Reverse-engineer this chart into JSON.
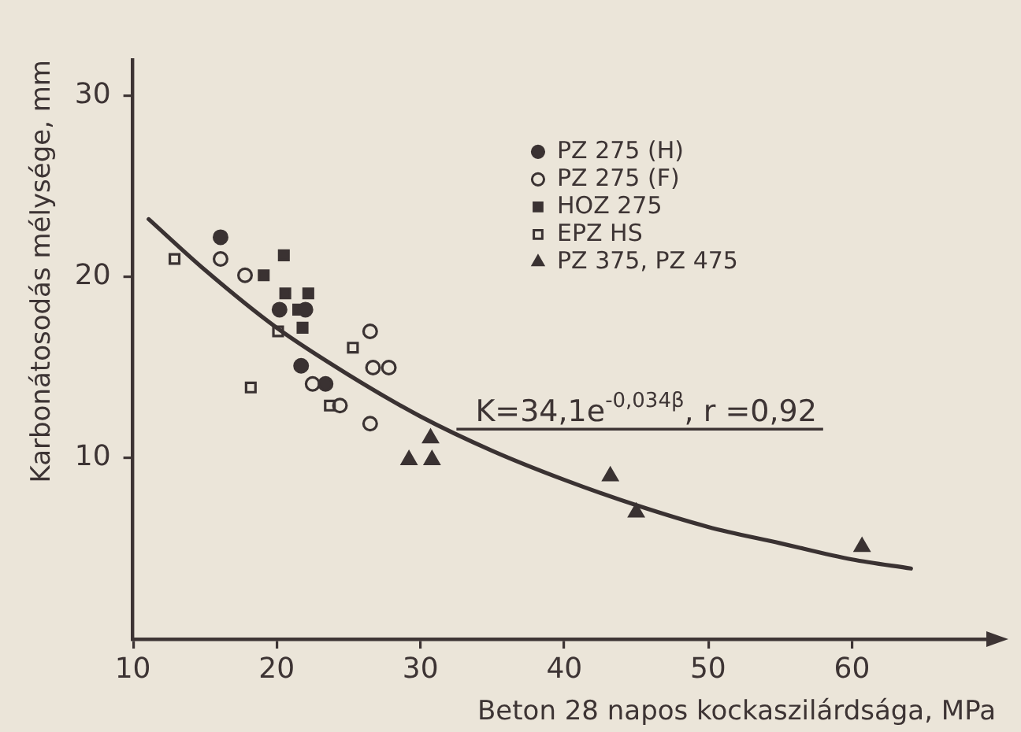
{
  "chart_data": {
    "type": "scatter",
    "xlabel": "Beton 28 napos kockaszilárdsága, MPa",
    "ylabel": "Karbonátosodás mélysége, mm",
    "xlim": [
      10,
      70
    ],
    "ylim": [
      0,
      32
    ],
    "xticks": [
      10,
      20,
      30,
      40,
      50,
      60
    ],
    "yticks": [
      10,
      20,
      30
    ],
    "legend": "top",
    "series": [
      {
        "name": "PZ 275 (H)",
        "color": "#3a3232",
        "marker": "circle",
        "x": [
          16.1,
          20.2,
          21.7,
          23.4,
          22.0
        ],
        "values": [
          22.2,
          18.2,
          15.1,
          14.1,
          18.2
        ]
      },
      {
        "name": "PZ 275 (F)",
        "color": "#3a3232",
        "marker": "circle-open",
        "x": [
          16.1,
          17.8,
          26.5,
          26.7,
          27.8,
          22.5,
          24.4,
          26.5
        ],
        "values": [
          21.0,
          20.1,
          17.0,
          15.0,
          15.0,
          14.1,
          12.9,
          11.9
        ]
      },
      {
        "name": "HOZ 275",
        "color": "#3a3232",
        "marker": "square",
        "x": [
          19.1,
          20.5,
          20.6,
          22.2,
          21.5,
          21.8
        ],
        "values": [
          20.1,
          21.2,
          19.1,
          19.1,
          18.2,
          17.2
        ]
      },
      {
        "name": "EPZ HS",
        "color": "#3a3232",
        "marker": "square-open",
        "x": [
          12.9,
          20.1,
          25.3,
          18.2,
          23.7
        ],
        "values": [
          21.0,
          17.0,
          16.1,
          13.9,
          12.9
        ]
      },
      {
        "name": "PZ 375, PZ 475",
        "color": "#3a3232",
        "marker": "triangle",
        "x": [
          29.2,
          30.8,
          30.7,
          43.2,
          45.0,
          60.7
        ],
        "values": [
          9.9,
          9.9,
          11.1,
          9.0,
          7.0,
          5.1
        ]
      },
      {
        "type": "line",
        "color": "#3a3232",
        "marker": "none",
        "x": [
          11.1,
          15,
          20,
          25,
          30,
          35,
          40,
          45,
          50,
          55,
          60,
          64.1
        ],
        "values": [
          23.2,
          20.4,
          17.2,
          14.6,
          12.3,
          10.4,
          8.8,
          7.4,
          6.2,
          5.3,
          4.4,
          3.9
        ]
      }
    ],
    "annotations": [
      {
        "text": "K=34,1e$^{-0,034β}$, r =0,92",
        "x": 32.5,
        "y": 11.6
      }
    ]
  }
}
